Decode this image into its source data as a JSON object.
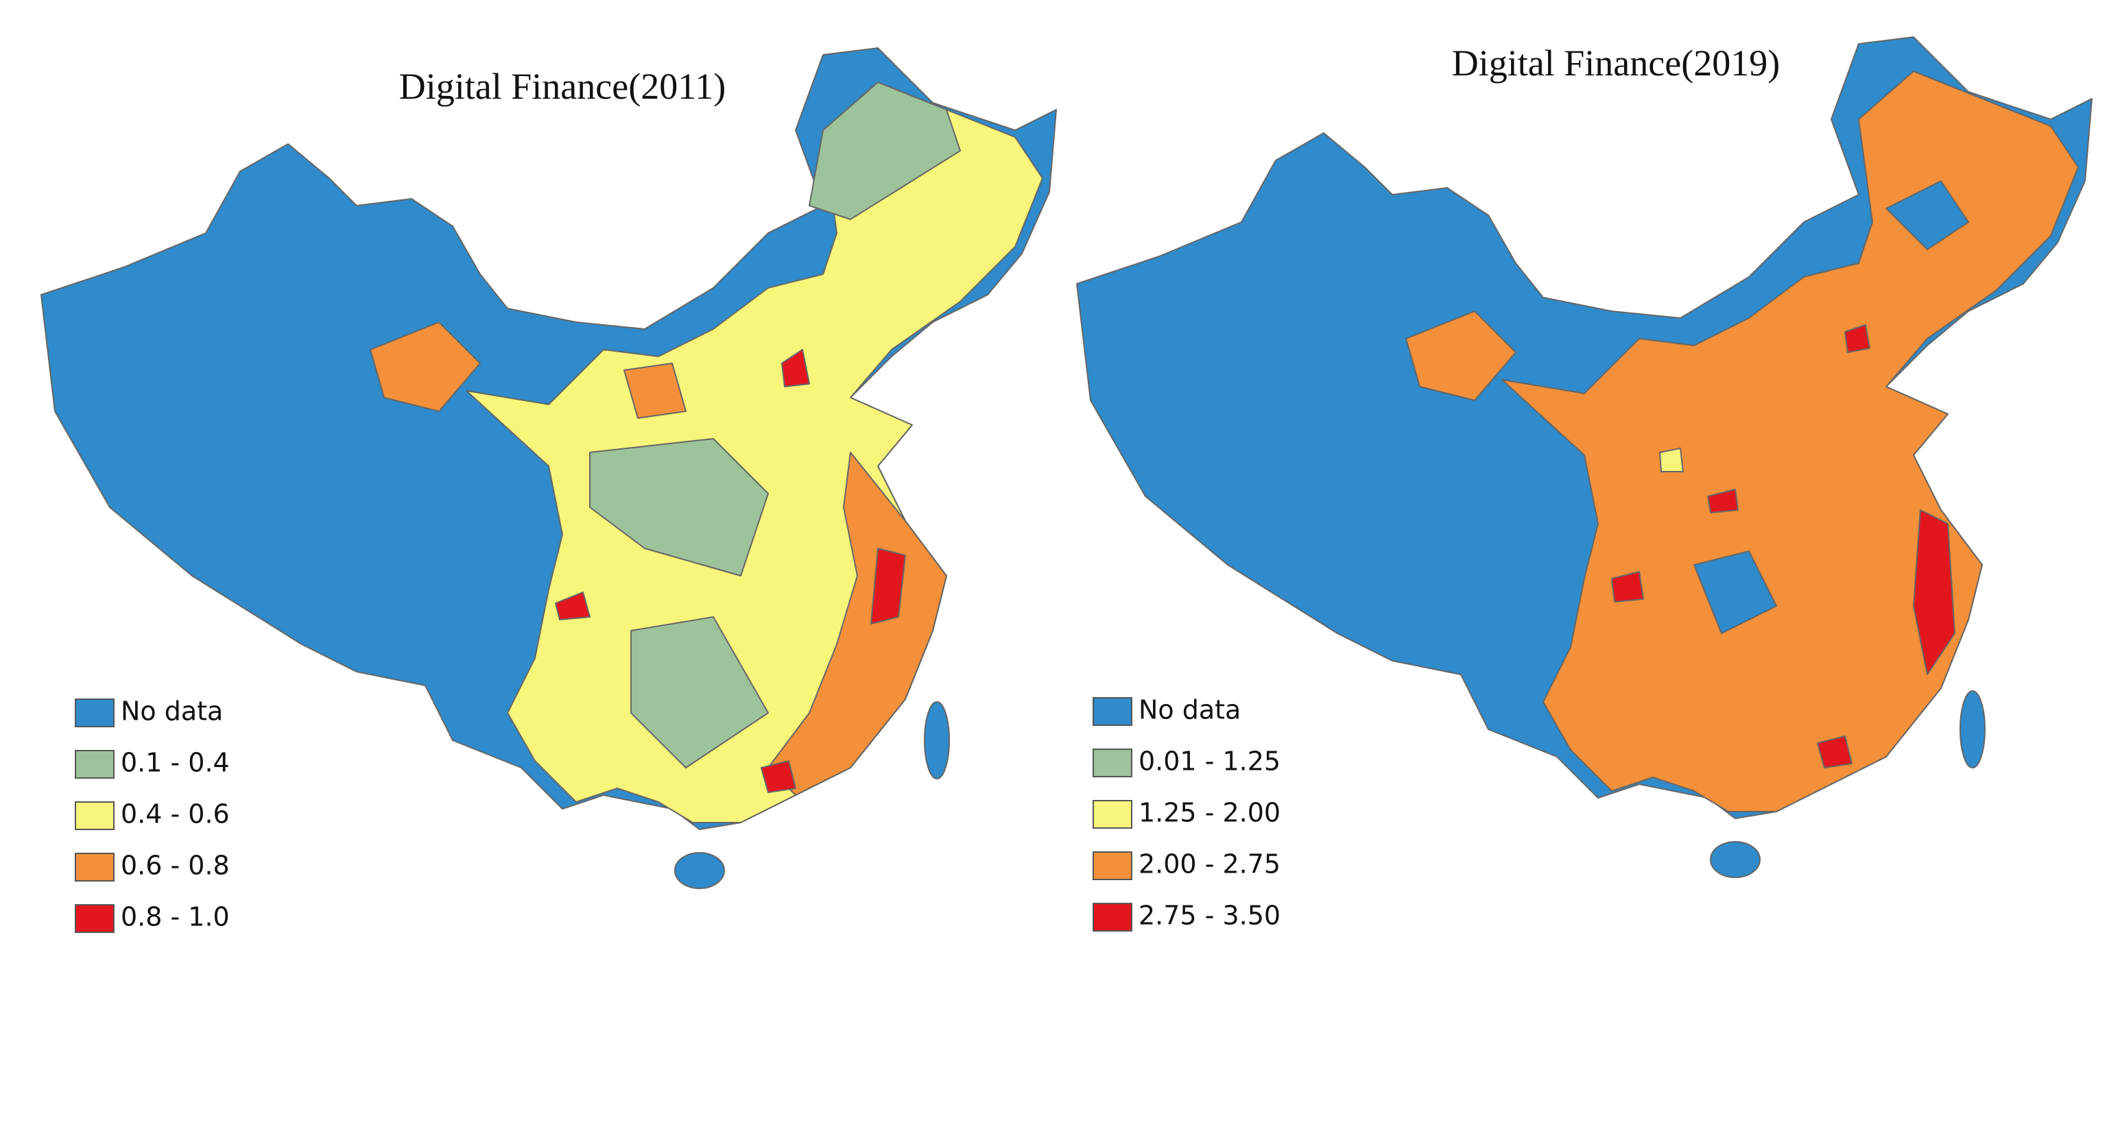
{
  "panels": [
    {
      "title": "Digital Finance(2011)",
      "legend": [
        {
          "label": "No data",
          "color": "#2f8bcb"
        },
        {
          "label": "0.1 - 0.4",
          "color": "#9dc39a"
        },
        {
          "label": "0.4 - 0.6",
          "color": "#f7f57a"
        },
        {
          "label": "0.6 - 0.8",
          "color": "#f39039"
        },
        {
          "label": "0.8 - 1.0",
          "color": "#e3161d"
        }
      ]
    },
    {
      "title": "Digital Finance(2019)",
      "legend": [
        {
          "label": "No data",
          "color": "#2f8bcb"
        },
        {
          "label": "0.01 - 1.25",
          "color": "#9dc39a"
        },
        {
          "label": "1.25 - 2.00",
          "color": "#f7f57a"
        },
        {
          "label": "2.00 - 2.75",
          "color": "#f39039"
        },
        {
          "label": "2.75 - 3.50",
          "color": "#e3161d"
        }
      ]
    }
  ]
}
